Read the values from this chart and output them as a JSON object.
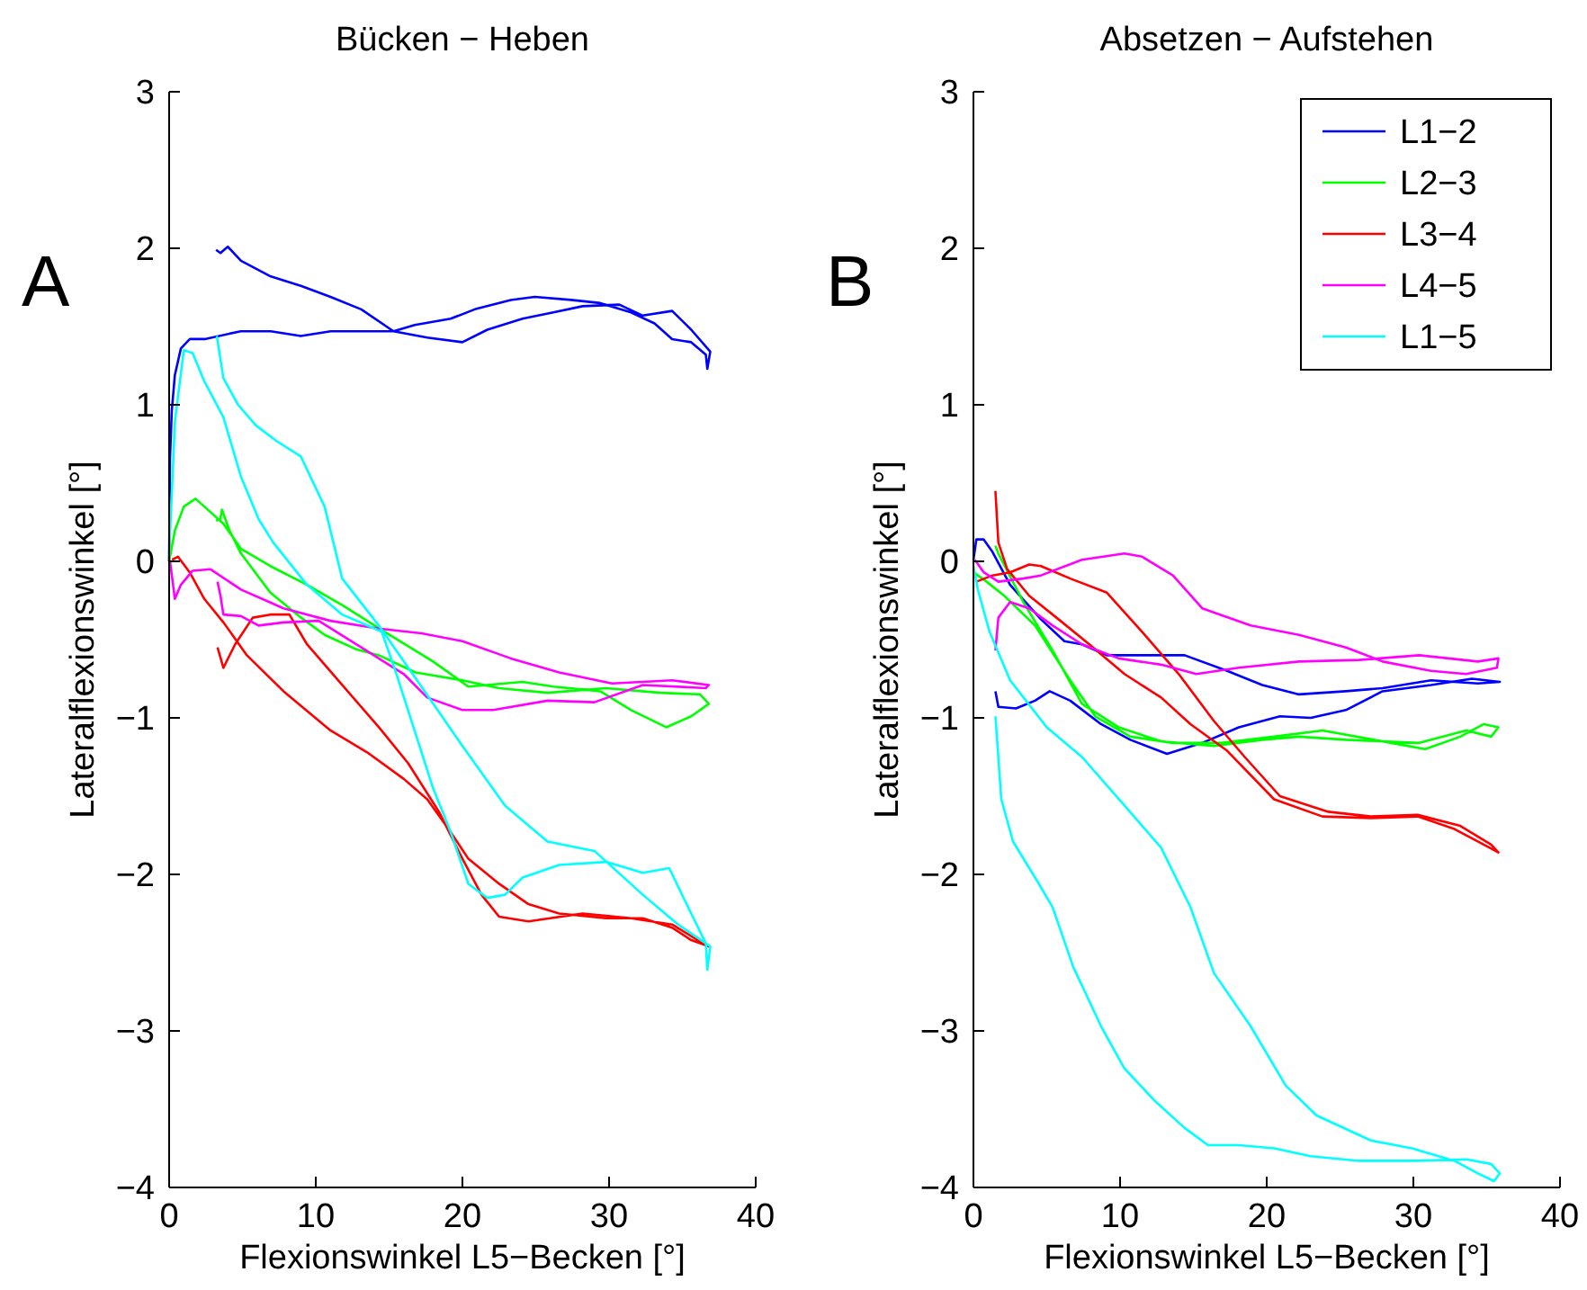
{
  "chart_data": [
    {
      "type": "line",
      "title": "Bücken − Heben",
      "xlabel": "Flexionswinkel L5−Becken [°]",
      "ylabel": "Lateralflexionswinkel [°]",
      "annotations": [
        "A"
      ],
      "xlim": [
        0,
        40
      ],
      "xticks": [
        0,
        10,
        20,
        30,
        40
      ],
      "ylim": [
        -4,
        3
      ],
      "yticks": [
        {
          "value": -4,
          "label": "−4"
        },
        {
          "value": -3,
          "label": "−3"
        },
        {
          "value": -2,
          "label": "−2"
        },
        {
          "value": -1,
          "label": "−1"
        },
        0,
        1,
        2,
        3
      ],
      "legend": false,
      "series": [
        {
          "color": "#0000ff",
          "x": [
            0,
            0.06,
            0.18,
            0.39,
            0.8,
            1.41,
            2.43,
            4.89,
            6.93,
            8.98,
            11.02,
            13.5,
            15.3,
            16.75,
            19.2,
            20.84,
            23.3,
            24.93,
            27.4,
            29.4,
            31.5,
            33.1,
            34.3,
            35.6,
            36.6,
            36.7,
            36.9,
            35.6,
            34.3,
            32.3,
            30.7,
            28.2,
            26.2,
            24.1,
            21.7,
            20.0,
            17.6,
            15.3,
            13.1,
            11.0,
            8.98,
            6.93,
            4.9,
            4.0,
            3.5,
            3.2
          ],
          "values": [
            0,
            0.66,
            0.96,
            1.19,
            1.36,
            1.42,
            1.42,
            1.47,
            1.47,
            1.44,
            1.47,
            1.47,
            1.47,
            1.51,
            1.55,
            1.61,
            1.67,
            1.69,
            1.67,
            1.65,
            1.59,
            1.52,
            1.42,
            1.4,
            1.32,
            1.23,
            1.34,
            1.48,
            1.6,
            1.57,
            1.64,
            1.63,
            1.59,
            1.55,
            1.48,
            1.4,
            1.43,
            1.47,
            1.61,
            1.69,
            1.76,
            1.82,
            1.92,
            2.01,
            1.97,
            1.99
          ]
        },
        {
          "color": "#00ff00",
          "x": [
            0,
            0.4,
            1.0,
            1.8,
            2.4,
            3.7,
            4.9,
            6.9,
            9.4,
            11.8,
            14.7,
            18.0,
            20.4,
            24.1,
            26.2,
            29.4,
            31.5,
            33.9,
            35.6,
            36.8,
            36.2,
            33.5,
            29.8,
            25.8,
            22.5,
            20.0,
            16.8,
            14.3,
            12.7,
            10.6,
            9.0,
            6.9,
            4.9,
            4.1,
            3.6,
            3.5,
            3.2
          ],
          "values": [
            0,
            0.2,
            0.35,
            0.4,
            0.35,
            0.24,
            0.08,
            -0.03,
            -0.15,
            -0.28,
            -0.45,
            -0.64,
            -0.8,
            -0.77,
            -0.8,
            -0.83,
            -0.95,
            -1.06,
            -0.99,
            -0.91,
            -0.85,
            -0.84,
            -0.81,
            -0.84,
            -0.81,
            -0.76,
            -0.71,
            -0.6,
            -0.56,
            -0.47,
            -0.36,
            -0.2,
            0.05,
            0.2,
            0.33,
            0.27,
            0.26
          ]
        },
        {
          "color": "#ff0000",
          "x": [
            0.2,
            0.6,
            1.4,
            2.4,
            3.7,
            5.3,
            7.8,
            11.0,
            13.5,
            16.0,
            17.6,
            19.2,
            20.4,
            22.5,
            24.5,
            26.6,
            29.8,
            32.3,
            34.3,
            35.6,
            36.8,
            36.4,
            34.3,
            31.5,
            28.2,
            24.5,
            22.5,
            21.3,
            20.0,
            18.4,
            16.3,
            14.3,
            11.8,
            9.4,
            8.2,
            6.9,
            5.7,
            4.5,
            3.7,
            3.3
          ],
          "values": [
            0.01,
            0.03,
            -0.07,
            -0.24,
            -0.39,
            -0.6,
            -0.83,
            -1.08,
            -1.22,
            -1.39,
            -1.52,
            -1.73,
            -1.9,
            -2.06,
            -2.19,
            -2.25,
            -2.28,
            -2.28,
            -2.34,
            -2.42,
            -2.46,
            -2.44,
            -2.32,
            -2.28,
            -2.25,
            -2.3,
            -2.27,
            -2.13,
            -1.9,
            -1.6,
            -1.29,
            -1.06,
            -0.79,
            -0.53,
            -0.34,
            -0.34,
            -0.36,
            -0.53,
            -0.68,
            -0.55
          ]
        },
        {
          "color": "#ff00ff",
          "x": [
            0.06,
            0.39,
            0.8,
            1.6,
            2.8,
            4.9,
            7.8,
            11.0,
            14.3,
            17.2,
            20.0,
            23.3,
            26.6,
            30.2,
            34.3,
            36.8,
            36.6,
            32.3,
            29.0,
            25.8,
            22.1,
            20.0,
            17.6,
            16.0,
            13.1,
            10.2,
            7.8,
            6.1,
            4.9,
            3.7,
            3.5,
            3.3
          ],
          "values": [
            0,
            -0.24,
            -0.15,
            -0.06,
            -0.05,
            -0.18,
            -0.3,
            -0.38,
            -0.43,
            -0.46,
            -0.51,
            -0.62,
            -0.71,
            -0.78,
            -0.76,
            -0.79,
            -0.81,
            -0.79,
            -0.9,
            -0.89,
            -0.95,
            -0.95,
            -0.87,
            -0.72,
            -0.55,
            -0.38,
            -0.39,
            -0.41,
            -0.35,
            -0.34,
            -0.22,
            -0.13
          ]
        },
        {
          "color": "#00ffff",
          "x": [
            0,
            0.4,
            1.0,
            1.6,
            2.4,
            3.7,
            4.9,
            6.1,
            7.1,
            9.4,
            11.8,
            14.5,
            15.5,
            16.8,
            18.0,
            19.2,
            20.4,
            21.7,
            22.9,
            24.1,
            26.6,
            29.8,
            32.3,
            34.1,
            35.6,
            36.6,
            36.7,
            36.9,
            34.7,
            32.3,
            29.0,
            25.8,
            22.9,
            20.0,
            17.2,
            14.3,
            11.8,
            10.6,
            8.98,
            7.3,
            5.9,
            4.7,
            3.7,
            3.25
          ],
          "values": [
            0.05,
            0.9,
            1.35,
            1.33,
            1.15,
            0.92,
            0.54,
            0.27,
            0.12,
            -0.15,
            -0.34,
            -0.45,
            -0.72,
            -1.1,
            -1.45,
            -1.73,
            -2.06,
            -2.15,
            -2.13,
            -2.02,
            -1.94,
            -1.92,
            -1.99,
            -1.96,
            -2.25,
            -2.44,
            -2.61,
            -2.46,
            -2.32,
            -2.13,
            -1.85,
            -1.79,
            -1.56,
            -1.18,
            -0.8,
            -0.41,
            -0.11,
            0.35,
            0.67,
            0.77,
            0.87,
            1.0,
            1.17,
            1.44
          ]
        }
      ]
    },
    {
      "type": "line",
      "title": "Absetzen − Aufstehen",
      "xlabel": "Flexionswinkel L5−Becken [°]",
      "ylabel": "Lateralflexionswinkel [°]",
      "annotations": [
        "B"
      ],
      "xlim": [
        0,
        40
      ],
      "xticks": [
        0,
        10,
        20,
        30,
        40
      ],
      "ylim": [
        -4,
        3
      ],
      "yticks": [
        {
          "value": -4,
          "label": "−4"
        },
        {
          "value": -3,
          "label": "−3"
        },
        {
          "value": -2,
          "label": "−2"
        },
        {
          "value": -1,
          "label": "−1"
        },
        0,
        1,
        2,
        3
      ],
      "legend": "top right",
      "series": [
        {
          "name": "L1−2",
          "color": "#0000ff",
          "x": [
            1.5,
            1.7,
            2.9,
            4.2,
            5.2,
            6.6,
            8.7,
            10.7,
            13.2,
            15.6,
            18.1,
            20.9,
            23.0,
            25.4,
            27.9,
            31.2,
            34.0,
            35.9,
            34.4,
            31.2,
            27.9,
            25.4,
            22.2,
            19.7,
            17.3,
            14.4,
            11.5,
            9.1,
            7.4,
            6.2,
            4.6,
            2.5,
            1.3,
            0.7,
            0.2,
            0
          ],
          "values": [
            -0.83,
            -0.93,
            -0.94,
            -0.89,
            -0.83,
            -0.89,
            -1.04,
            -1.14,
            -1.23,
            -1.16,
            -1.06,
            -0.99,
            -1.0,
            -0.95,
            -0.83,
            -0.79,
            -0.75,
            -0.77,
            -0.78,
            -0.76,
            -0.81,
            -0.83,
            -0.85,
            -0.79,
            -0.7,
            -0.6,
            -0.6,
            -0.6,
            -0.53,
            -0.51,
            -0.37,
            -0.15,
            0.06,
            0.14,
            0.14,
            0.01
          ]
        },
        {
          "name": "L2−3",
          "color": "#00ff00",
          "x": [
            0,
            0.9,
            2.1,
            4.2,
            6.6,
            8.3,
            10.7,
            13.6,
            16.9,
            20.5,
            23.8,
            27.9,
            30.8,
            33.2,
            34.8,
            35.8,
            35.3,
            33.6,
            30.4,
            25.4,
            22.2,
            19.7,
            16.4,
            12.8,
            9.9,
            7.4,
            5.4,
            3.4,
            1.7,
            1.5
          ],
          "values": [
            -0.07,
            -0.13,
            -0.22,
            -0.41,
            -0.76,
            -0.99,
            -1.12,
            -1.16,
            -1.16,
            -1.12,
            -1.08,
            -1.15,
            -1.2,
            -1.12,
            -1.04,
            -1.06,
            -1.12,
            -1.08,
            -1.16,
            -1.14,
            -1.12,
            -1.14,
            -1.18,
            -1.15,
            -1.06,
            -0.91,
            -0.57,
            -0.26,
            0.05,
            0.1
          ]
        },
        {
          "name": "L3−4",
          "color": "#ff0000",
          "x": [
            1.5,
            1.7,
            2.3,
            3.8,
            5.8,
            7.9,
            10.3,
            12.8,
            14.8,
            17.3,
            20.5,
            23.8,
            27.1,
            30.3,
            32.8,
            34.8,
            35.8,
            35.3,
            33.2,
            30.3,
            27.1,
            24.2,
            20.9,
            18.5,
            16.4,
            14.0,
            11.5,
            9.1,
            6.6,
            4.6,
            3.8,
            2.5,
            1.3,
            0.2
          ],
          "values": [
            0.45,
            0.12,
            -0.05,
            -0.22,
            -0.37,
            -0.53,
            -0.72,
            -0.87,
            -1.04,
            -1.21,
            -1.52,
            -1.63,
            -1.64,
            -1.63,
            -1.71,
            -1.81,
            -1.86,
            -1.81,
            -1.69,
            -1.62,
            -1.63,
            -1.6,
            -1.5,
            -1.25,
            -1.02,
            -0.72,
            -0.45,
            -0.2,
            -0.11,
            -0.03,
            -0.02,
            -0.07,
            -0.09,
            -0.13
          ]
        },
        {
          "name": "L4−5",
          "color": "#ff00ff",
          "x": [
            1.5,
            1.7,
            2.5,
            3.8,
            5.4,
            7.4,
            9.9,
            12.8,
            15.2,
            18.1,
            22.2,
            26.3,
            30.4,
            34.4,
            35.8,
            35.7,
            33.6,
            31.2,
            27.9,
            25.4,
            22.2,
            18.9,
            15.6,
            13.6,
            11.5,
            10.3,
            7.4,
            4.6,
            3.4,
            1.7,
            0.7,
            0.1
          ],
          "values": [
            -0.57,
            -0.36,
            -0.26,
            -0.3,
            -0.41,
            -0.53,
            -0.62,
            -0.66,
            -0.72,
            -0.68,
            -0.64,
            -0.63,
            -0.6,
            -0.64,
            -0.62,
            -0.68,
            -0.72,
            -0.7,
            -0.64,
            -0.55,
            -0.47,
            -0.41,
            -0.3,
            -0.09,
            0.03,
            0.05,
            0.01,
            -0.09,
            -0.11,
            -0.13,
            -0.07,
            0.01
          ]
        },
        {
          "name": "L1−5",
          "color": "#00ffff",
          "x": [
            1.5,
            1.9,
            2.7,
            4.4,
            5.4,
            6.8,
            8.7,
            10.3,
            12.4,
            14.4,
            16.0,
            18.1,
            20.5,
            23.0,
            26.3,
            30.3,
            33.6,
            35.3,
            35.9,
            35.5,
            34.4,
            32.8,
            29.9,
            27.1,
            23.4,
            21.3,
            18.9,
            16.4,
            14.8,
            12.8,
            10.3,
            7.4,
            5.0,
            2.5,
            1.1,
            0.3,
            0
          ],
          "values": [
            -0.99,
            -1.52,
            -1.79,
            -2.05,
            -2.21,
            -2.59,
            -2.97,
            -3.24,
            -3.45,
            -3.62,
            -3.73,
            -3.73,
            -3.75,
            -3.8,
            -3.83,
            -3.83,
            -3.82,
            -3.85,
            -3.91,
            -3.96,
            -3.91,
            -3.83,
            -3.75,
            -3.7,
            -3.54,
            -3.35,
            -2.97,
            -2.63,
            -2.21,
            -1.83,
            -1.56,
            -1.25,
            -1.06,
            -0.76,
            -0.45,
            -0.18,
            -0.03
          ]
        }
      ]
    }
  ]
}
